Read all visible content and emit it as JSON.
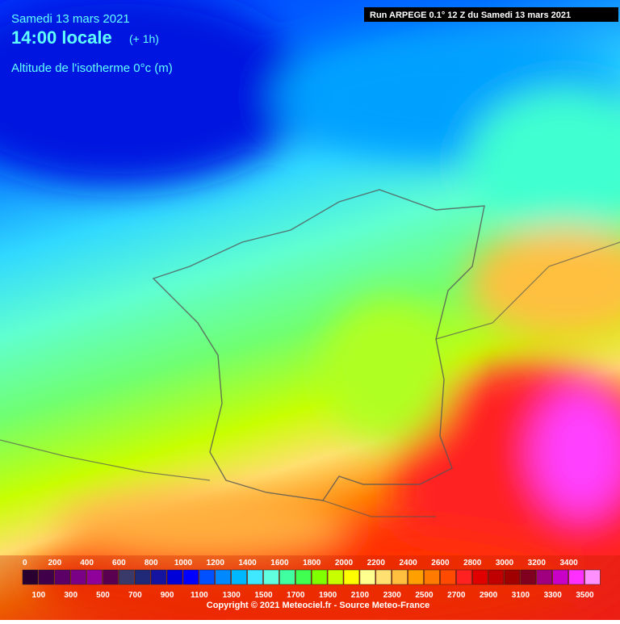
{
  "header": {
    "date": "Samedi 13 mars 2021",
    "time": "14:00 locale",
    "offset": "(+ 1h)",
    "variable": "Altitude de l'isotherme 0°c (m)",
    "run": "Run ARPEGE 0.1° 12 Z du Samedi 13 mars 2021"
  },
  "legend": {
    "levels": [
      0,
      100,
      200,
      300,
      400,
      500,
      600,
      700,
      800,
      900,
      1000,
      1100,
      1200,
      1300,
      1400,
      1500,
      1600,
      1700,
      1800,
      1900,
      2000,
      2100,
      2200,
      2300,
      2400,
      2500,
      2600,
      2700,
      2800,
      2900,
      3000,
      3100,
      3200,
      3300,
      3400,
      3500
    ],
    "colors": [
      "#2a0030",
      "#40004a",
      "#5c0068",
      "#7a0086",
      "#90009a",
      "#5a0050",
      "#3a3a6a",
      "#202878",
      "#1414a0",
      "#0000d8",
      "#0000ff",
      "#0050ff",
      "#0088ff",
      "#00b8ff",
      "#40e8ff",
      "#60ffe0",
      "#40ffa0",
      "#40ff50",
      "#80ff00",
      "#c8ff00",
      "#ffff00",
      "#ffff90",
      "#ffe070",
      "#ffc040",
      "#ffa000",
      "#ff7a00",
      "#ff4a00",
      "#ff2020",
      "#e00000",
      "#c00000",
      "#a00000",
      "#800020",
      "#a00080",
      "#c800c8",
      "#ff30ff",
      "#ff90ff"
    ]
  },
  "footer": {
    "copyright": "Copyright © 2021 Meteociel.fr - Source Meteo-France"
  }
}
